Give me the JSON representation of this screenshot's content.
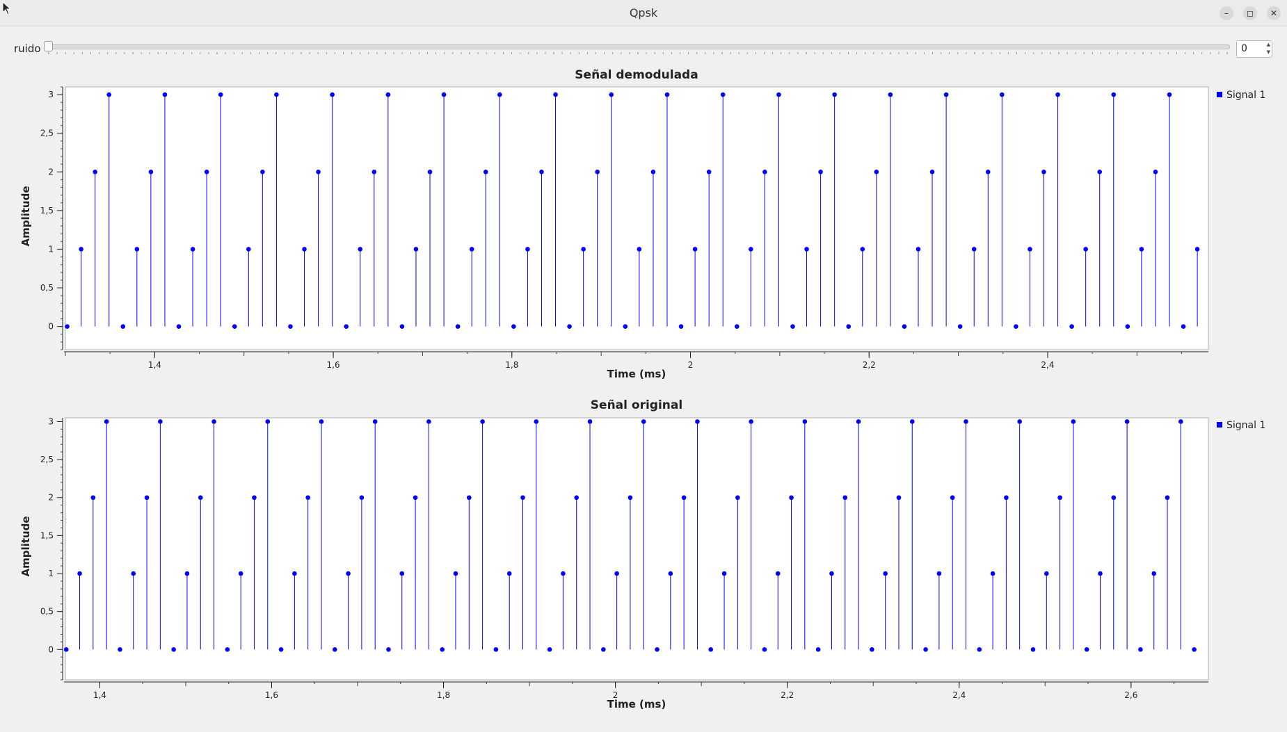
{
  "window": {
    "title": "Qpsk",
    "minimize_icon": "minimize-icon",
    "maximize_icon": "maximize-icon",
    "close_icon": "close-icon"
  },
  "noise_control": {
    "label": "ruido",
    "slider_value": 0,
    "spin_value": "0"
  },
  "colors": {
    "signal": "#0000ff",
    "axis": "#222222",
    "plot_bg": "#ffffff"
  },
  "chart_data": [
    {
      "type": "stem",
      "title": "Señal demodulada",
      "xlabel": "Time (ms)",
      "ylabel": "Amplitude",
      "xlim": [
        1.3,
        2.58
      ],
      "ylim": [
        -0.3,
        3.1
      ],
      "xticks": [
        "1,4",
        "1,6",
        "1,8",
        "2",
        "2,2",
        "2,4"
      ],
      "xtick_values": [
        1.4,
        1.6,
        1.8,
        2.0,
        2.2,
        2.4
      ],
      "yticks": [
        "0",
        "0,5",
        "1",
        "1,5",
        "2",
        "2,5",
        "3"
      ],
      "ytick_values": [
        0,
        0.5,
        1,
        1.5,
        2,
        2.5,
        3
      ],
      "legend": "Signal 1",
      "legend_position": "right",
      "series": [
        {
          "name": "Signal 1",
          "x_start": 1.302,
          "x_step": 0.015625,
          "pattern": [
            0,
            1,
            2,
            3
          ],
          "count": 84
        }
      ]
    },
    {
      "type": "stem",
      "title": "Señal original",
      "xlabel": "Time (ms)",
      "ylabel": "Amplitude",
      "xlim": [
        1.36,
        2.69
      ],
      "ylim": [
        -0.4,
        3.05
      ],
      "xticks": [
        "1,4",
        "1,6",
        "1,8",
        "2",
        "2,2",
        "2,4",
        "2,6"
      ],
      "xtick_values": [
        1.4,
        1.6,
        1.8,
        2.0,
        2.2,
        2.4,
        2.6
      ],
      "yticks": [
        "0",
        "0,5",
        "1",
        "1,5",
        "2",
        "2,5",
        "3"
      ],
      "ytick_values": [
        0,
        0.5,
        1,
        1.5,
        2,
        2.5,
        3
      ],
      "legend": "Signal 1",
      "legend_position": "right",
      "series": [
        {
          "name": "Signal 1",
          "x_start": 1.361,
          "x_step": 0.015625,
          "pattern": [
            0,
            1,
            2,
            3
          ],
          "count": 85
        }
      ]
    }
  ]
}
